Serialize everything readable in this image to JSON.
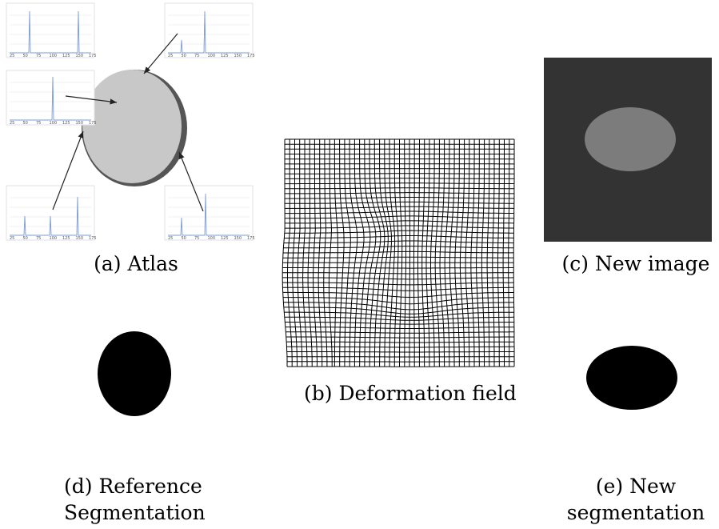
{
  "figure": {
    "atlas": {
      "caption": "(a) Atlas",
      "histogram_ticks": [
        "25",
        "50",
        "75",
        "100",
        "125",
        "150",
        "175"
      ]
    },
    "deformation": {
      "caption": "(b) Deformation field"
    },
    "new_image": {
      "caption": "(c) New image"
    },
    "reference_segmentation": {
      "caption_line1": "(d) Reference",
      "caption_line2": "Segmentation"
    },
    "new_segmentation": {
      "caption_line1": "(e) New",
      "caption_line2": "segmentation"
    }
  },
  "colors": {
    "atlas_disk": "#c8c8c8",
    "atlas_shadow": "#555555",
    "histogram_line": "#7a9bd6",
    "new_image_bg": "#333333",
    "new_image_ellipse": "#7c7c7c",
    "segmentation": "#000000"
  }
}
